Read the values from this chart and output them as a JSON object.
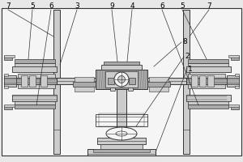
{
  "bg_color": "#e8e8e8",
  "line_color": "#333333",
  "fill_light": "#cccccc",
  "fill_mid": "#aaaaaa",
  "fill_dark": "#888888",
  "fill_white": "#f5f5f5",
  "fill_hatch": "#bbbbbb"
}
